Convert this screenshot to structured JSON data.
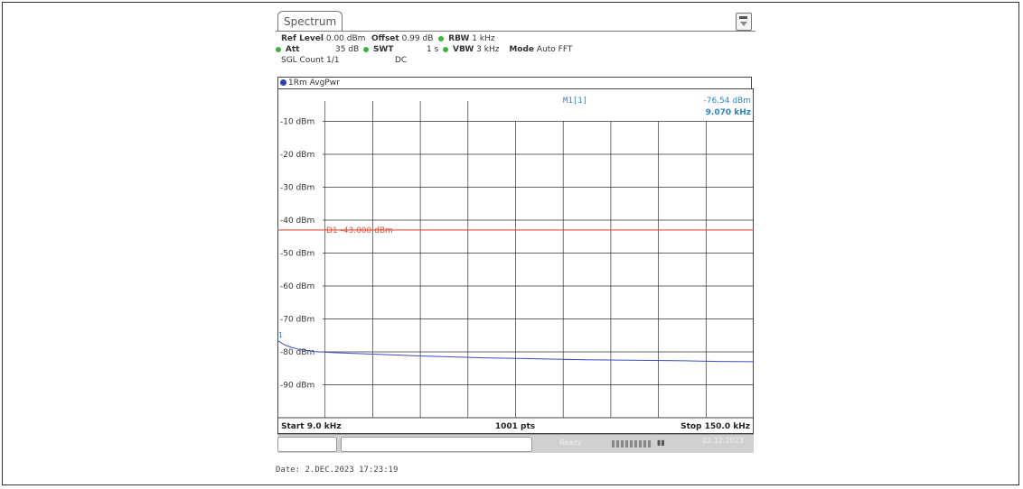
{
  "window": {
    "tab_label": "Spectrum"
  },
  "settings": {
    "ref_level_label": "Ref Level",
    "ref_level_value": "0.00 dBm",
    "offset_label": "Offset",
    "offset_value": "0.99 dB",
    "rbw_label": "RBW",
    "rbw_value": "1 kHz",
    "att_label": "Att",
    "att_value": "35 dB",
    "swt_label": "SWT",
    "swt_value": "1 s",
    "vbw_label": "VBW",
    "vbw_value": "3 kHz",
    "mode_label": "Mode",
    "mode_value": "Auto FFT",
    "sgl_count": "SGL Count 1/1",
    "coupling": "DC"
  },
  "trace_header": "1Rm AvgPwr",
  "marker": {
    "label": "M1[1]",
    "level": "-76.54 dBm",
    "freq": "9.070 kHz",
    "index": "1"
  },
  "footer": {
    "start": "Start 9.0 kHz",
    "points": "1001 pts",
    "stop": "Stop 150.0 kHz"
  },
  "softkey_bar": {
    "status": "Ready",
    "datetime": "02.12.2023"
  },
  "date_line": "Date: 2.DEC.2023  17:23:19",
  "colors": {
    "trace": "#3a4fc0",
    "display_line": "#e0503c",
    "marker_text": "#2a86c7"
  },
  "chart_data": {
    "type": "line",
    "xlabel": "",
    "ylabel": "",
    "x_unit": "kHz",
    "xlim": [
      9.0,
      150.0
    ],
    "ylim": [
      -100,
      0
    ],
    "y_ticks": [
      -10,
      -20,
      -30,
      -40,
      -50,
      -60,
      -70,
      -80,
      -90
    ],
    "y_tick_labels": [
      "-10 dBm",
      "-20 dBm",
      "-30 dBm",
      "-40 dBm",
      "-50 dBm",
      "-60 dBm",
      "-70 dBm",
      "-80 dBm",
      "-90 dBm"
    ],
    "grid": true,
    "display_line": {
      "label": "D1  -43.000 dBm",
      "value": -43.0
    },
    "series": [
      {
        "values_x": [
          9.0,
          11.0,
          13.0,
          16.0,
          20.0,
          25.0,
          30.0,
          40.0,
          50.0,
          60.0,
          70.0,
          80.0,
          90.0,
          100.0,
          110.0,
          120.0,
          130.0,
          140.0,
          150.0
        ],
        "values_y": [
          -76.5,
          -77.8,
          -78.6,
          -79.4,
          -79.9,
          -80.2,
          -80.4,
          -80.8,
          -81.2,
          -81.5,
          -81.8,
          -82.0,
          -82.2,
          -82.4,
          -82.5,
          -82.6,
          -82.7,
          -82.9,
          -83.0
        ]
      }
    ]
  }
}
